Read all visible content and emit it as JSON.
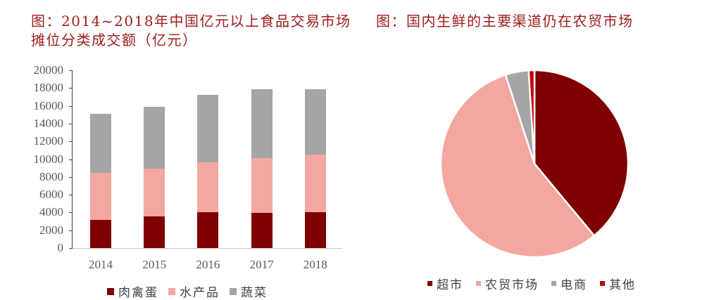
{
  "titles": {
    "left": "图：2014~2018年中国亿元以上食品交易市场摊位分类成交额（亿元）",
    "right": "图：国内生鲜的主要渠道仍在农贸市场"
  },
  "colors": {
    "title": "#9E1A1A",
    "meat": "#7F0000",
    "aquatic": "#F4A7A0",
    "vegetable": "#A5A5A5",
    "supermarket": "#7F0000",
    "farmers_market": "#F4A7A0",
    "ecommerce": "#A5A5A5",
    "other": "#C00000"
  },
  "chart_data": [
    {
      "type": "bar",
      "stacked": true,
      "title": "图：2014~2018年中国亿元以上食品交易市场摊位分类成交额（亿元）",
      "xlabel": "",
      "ylabel": "",
      "ylim": [
        0,
        20000
      ],
      "yticks": [
        "0",
        "2000",
        "4000",
        "6000",
        "8000",
        "10000",
        "12000",
        "14000",
        "16000",
        "18000",
        "20000"
      ],
      "categories": [
        "2014",
        "2015",
        "2016",
        "2017",
        "2018"
      ],
      "series": [
        {
          "name": "肉禽蛋",
          "color": "#7F0000",
          "values": [
            3200,
            3550,
            4000,
            3950,
            4050
          ]
        },
        {
          "name": "水产品",
          "color": "#F4A7A0",
          "values": [
            5250,
            5400,
            5650,
            6150,
            6450
          ]
        },
        {
          "name": "蔬菜",
          "color": "#A5A5A5",
          "values": [
            6650,
            6950,
            7600,
            7750,
            7400
          ]
        }
      ],
      "totals": [
        15100,
        15900,
        17250,
        17850,
        17900
      ],
      "grid": false,
      "legend_position": "bottom"
    },
    {
      "type": "pie",
      "title": "图：国内生鲜的主要渠道仍在农贸市场",
      "categories": [
        "超市",
        "农贸市场",
        "电商",
        "其他"
      ],
      "values": [
        39,
        56,
        4,
        1
      ],
      "unit": "%",
      "colors": [
        "#7F0000",
        "#F4A7A0",
        "#A5A5A5",
        "#C00000"
      ],
      "start_angle": "12 o'clock, clockwise",
      "legend_position": "bottom"
    }
  ],
  "legend_left": [
    {
      "label": "肉禽蛋",
      "color": "#7F0000"
    },
    {
      "label": "水产品",
      "color": "#F4A7A0"
    },
    {
      "label": "蔬菜",
      "color": "#A5A5A5"
    }
  ],
  "legend_right": [
    {
      "label": "超市",
      "color": "#7F0000"
    },
    {
      "label": "农贸市场",
      "color": "#F4A7A0"
    },
    {
      "label": "电商",
      "color": "#A5A5A5"
    },
    {
      "label": "其他",
      "color": "#C00000"
    }
  ]
}
